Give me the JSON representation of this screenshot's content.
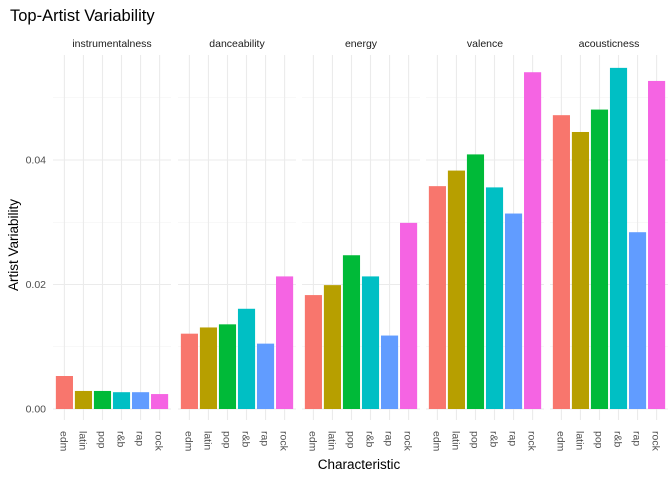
{
  "chart_data": {
    "type": "bar",
    "title": "Top-Artist Variability",
    "xlabel": "Characteristic",
    "ylabel": "Artist Variability",
    "ylim": [
      0,
      0.0575
    ],
    "y_ticks": [
      0,
      0.02,
      0.04
    ],
    "y_tick_labels": [
      "0.00",
      "0.02",
      "0.04"
    ],
    "grid": true,
    "legend": "none",
    "categories": [
      "edm",
      "latin",
      "pop",
      "r&b",
      "rap",
      "rock"
    ],
    "category_colors": [
      "#F8766D",
      "#B79F00",
      "#00BA38",
      "#00BFC4",
      "#619CFF",
      "#F564E3"
    ],
    "facets": [
      {
        "name": "instrumentalness",
        "values": [
          0.0053,
          0.0029,
          0.0029,
          0.0027,
          0.0027,
          0.0024
        ]
      },
      {
        "name": "danceability",
        "values": [
          0.0121,
          0.0131,
          0.0136,
          0.0161,
          0.0105,
          0.0213
        ]
      },
      {
        "name": "energy",
        "values": [
          0.0183,
          0.0199,
          0.0247,
          0.0213,
          0.0118,
          0.0299
        ]
      },
      {
        "name": "valence",
        "values": [
          0.0358,
          0.0383,
          0.0409,
          0.0356,
          0.0314,
          0.0541
        ]
      },
      {
        "name": "acousticness",
        "values": [
          0.0472,
          0.0445,
          0.0481,
          0.0548,
          0.0284,
          0.0527
        ]
      }
    ]
  }
}
